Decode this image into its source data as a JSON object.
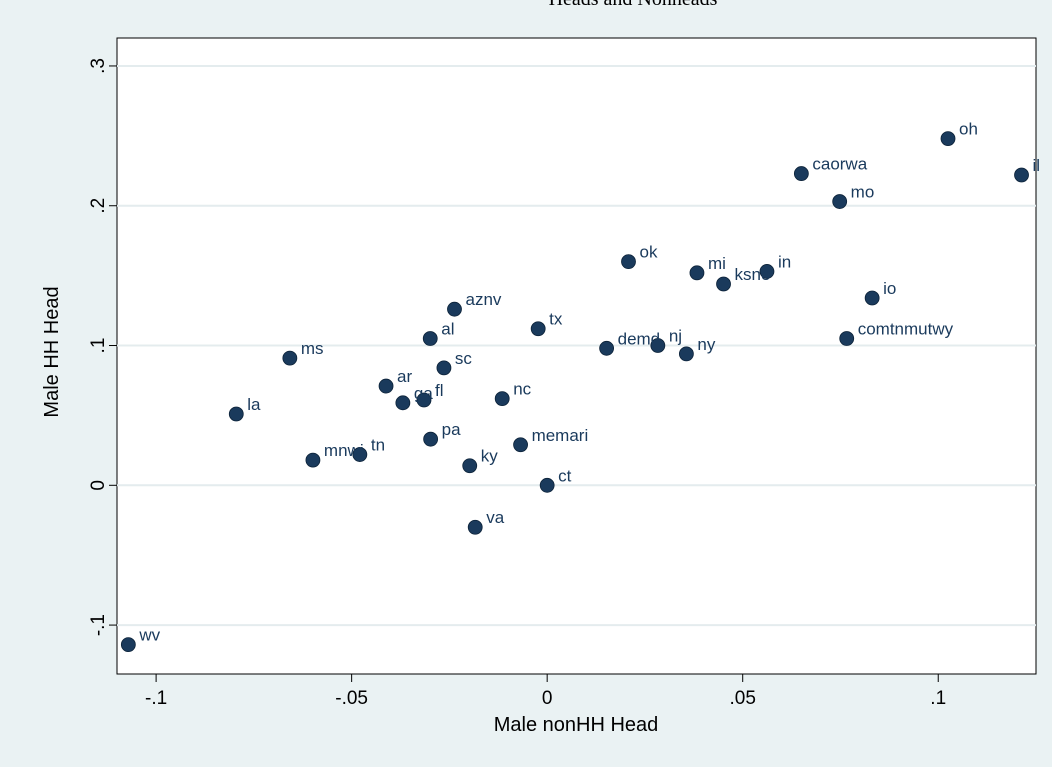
{
  "chart_data": {
    "type": "scatter",
    "title": "Heads and Nonheads",
    "xlabel": "Male nonHH Head",
    "ylabel": "Male HH Head",
    "xlim": [
      -0.11,
      0.125
    ],
    "ylim": [
      -0.135,
      0.32
    ],
    "x_ticks": [
      -0.1,
      -0.05,
      0,
      0.05,
      0.1
    ],
    "x_tick_labels": [
      "-.1",
      "-.05",
      "0",
      ".05",
      ".1"
    ],
    "y_ticks": [
      -0.1,
      0,
      0.1,
      0.2,
      0.3
    ],
    "y_tick_labels": [
      "-.1",
      "0",
      ".1",
      ".2",
      ".3"
    ],
    "grid": "horizontal",
    "marker_color": "#1a3a5c",
    "points": [
      {
        "x": 0.1025,
        "y": 0.248,
        "label": "oh"
      },
      {
        "x": 0.1213,
        "y": 0.222,
        "label": "il"
      },
      {
        "x": 0.065,
        "y": 0.223,
        "label": "caorwa"
      },
      {
        "x": 0.0748,
        "y": 0.203,
        "label": "mo"
      },
      {
        "x": 0.0208,
        "y": 0.16,
        "label": "ok"
      },
      {
        "x": 0.0383,
        "y": 0.152,
        "label": "mi"
      },
      {
        "x": 0.0562,
        "y": 0.153,
        "label": "in"
      },
      {
        "x": 0.0451,
        "y": 0.144,
        "label": "ksne"
      },
      {
        "x": 0.0831,
        "y": 0.134,
        "label": "io"
      },
      {
        "x": 0.0766,
        "y": 0.105,
        "label": "comtnmutwy"
      },
      {
        "x": -0.0237,
        "y": 0.126,
        "label": "aznv"
      },
      {
        "x": -0.0023,
        "y": 0.112,
        "label": "tx"
      },
      {
        "x": -0.0299,
        "y": 0.105,
        "label": "al"
      },
      {
        "x": 0.0152,
        "y": 0.098,
        "label": "demd"
      },
      {
        "x": 0.0283,
        "y": 0.1,
        "label": "nj"
      },
      {
        "x": 0.0356,
        "y": 0.094,
        "label": "ny"
      },
      {
        "x": -0.0658,
        "y": 0.091,
        "label": "ms"
      },
      {
        "x": -0.0264,
        "y": 0.084,
        "label": "sc"
      },
      {
        "x": -0.0412,
        "y": 0.071,
        "label": "ar"
      },
      {
        "x": -0.0369,
        "y": 0.059,
        "label": "ga"
      },
      {
        "x": -0.0315,
        "y": 0.061,
        "label": "fl"
      },
      {
        "x": -0.0115,
        "y": 0.062,
        "label": "nc"
      },
      {
        "x": -0.0795,
        "y": 0.051,
        "label": "la"
      },
      {
        "x": -0.0298,
        "y": 0.033,
        "label": "pa"
      },
      {
        "x": -0.0068,
        "y": 0.029,
        "label": "memari"
      },
      {
        "x": -0.0479,
        "y": 0.022,
        "label": "tn"
      },
      {
        "x": -0.0599,
        "y": 0.018,
        "label": "mnwi"
      },
      {
        "x": -0.0198,
        "y": 0.014,
        "label": "ky"
      },
      {
        "x": 0.0,
        "y": 0.0,
        "label": "ct"
      },
      {
        "x": -0.0184,
        "y": -0.03,
        "label": "va"
      },
      {
        "x": -0.1071,
        "y": -0.114,
        "label": "wv"
      }
    ]
  }
}
